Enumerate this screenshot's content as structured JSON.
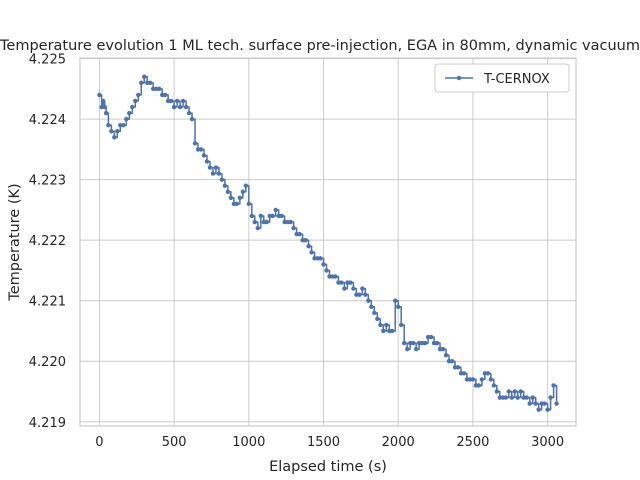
{
  "chart_data": {
    "type": "line",
    "title": "Temperature evolution 1 ML tech. surface pre-injection, EGA in 80mm, dynamic vacuum",
    "xlabel": "Elapsed time (s)",
    "ylabel": "Temperature (K)",
    "xlim": [
      -130,
      3190
    ],
    "ylim": [
      4.21893,
      4.22501
    ],
    "xticks": [
      0,
      500,
      1000,
      1500,
      2000,
      2500,
      3000
    ],
    "xtick_labels": [
      "0",
      "500",
      "1000",
      "1500",
      "2000",
      "2500",
      "3000"
    ],
    "yticks": [
      4.219,
      4.22,
      4.221,
      4.222,
      4.223,
      4.224,
      4.225
    ],
    "ytick_labels": [
      "4.219",
      "4.220",
      "4.221",
      "4.222",
      "4.223",
      "4.224",
      "4.225"
    ],
    "grid": true,
    "legend_position": "top-right",
    "series": [
      {
        "name": "T-CERNOX",
        "color": "#4c72b0",
        "marker": "circle",
        "points": [
          [
            0,
            4.2244
          ],
          [
            15,
            4.2242
          ],
          [
            25,
            4.2243
          ],
          [
            35,
            4.2242
          ],
          [
            45,
            4.2241
          ],
          [
            60,
            4.2239
          ],
          [
            80,
            4.2238
          ],
          [
            100,
            4.2237
          ],
          [
            120,
            4.2238
          ],
          [
            140,
            4.2239
          ],
          [
            160,
            4.2239
          ],
          [
            180,
            4.224
          ],
          [
            200,
            4.2241
          ],
          [
            220,
            4.2242
          ],
          [
            240,
            4.2243
          ],
          [
            260,
            4.2244
          ],
          [
            280,
            4.2246
          ],
          [
            300,
            4.2247
          ],
          [
            320,
            4.2246
          ],
          [
            340,
            4.2246
          ],
          [
            360,
            4.2245
          ],
          [
            380,
            4.2245
          ],
          [
            400,
            4.2245
          ],
          [
            420,
            4.2244
          ],
          [
            440,
            4.2244
          ],
          [
            460,
            4.2243
          ],
          [
            480,
            4.2243
          ],
          [
            500,
            4.2242
          ],
          [
            520,
            4.2243
          ],
          [
            540,
            4.2242
          ],
          [
            560,
            4.2243
          ],
          [
            580,
            4.2242
          ],
          [
            600,
            4.2241
          ],
          [
            620,
            4.224
          ],
          [
            640,
            4.2236
          ],
          [
            660,
            4.2235
          ],
          [
            680,
            4.2235
          ],
          [
            700,
            4.2234
          ],
          [
            720,
            4.2233
          ],
          [
            740,
            4.2232
          ],
          [
            760,
            4.2231
          ],
          [
            780,
            4.2232
          ],
          [
            800,
            4.2231
          ],
          [
            820,
            4.223
          ],
          [
            840,
            4.2229
          ],
          [
            860,
            4.2228
          ],
          [
            880,
            4.2227
          ],
          [
            900,
            4.2226
          ],
          [
            920,
            4.2226
          ],
          [
            940,
            4.2227
          ],
          [
            960,
            4.2228
          ],
          [
            980,
            4.2229
          ],
          [
            1000,
            4.2226
          ],
          [
            1020,
            4.2224
          ],
          [
            1040,
            4.2223
          ],
          [
            1060,
            4.2222
          ],
          [
            1080,
            4.2224
          ],
          [
            1100,
            4.2223
          ],
          [
            1120,
            4.2223
          ],
          [
            1140,
            4.2224
          ],
          [
            1160,
            4.2224
          ],
          [
            1180,
            4.2225
          ],
          [
            1200,
            4.2224
          ],
          [
            1220,
            4.2224
          ],
          [
            1240,
            4.2223
          ],
          [
            1260,
            4.2223
          ],
          [
            1280,
            4.2223
          ],
          [
            1300,
            4.2222
          ],
          [
            1320,
            4.2221
          ],
          [
            1340,
            4.2221
          ],
          [
            1360,
            4.222
          ],
          [
            1380,
            4.222
          ],
          [
            1400,
            4.2219
          ],
          [
            1420,
            4.2218
          ],
          [
            1440,
            4.2217
          ],
          [
            1460,
            4.2217
          ],
          [
            1480,
            4.2217
          ],
          [
            1500,
            4.2216
          ],
          [
            1520,
            4.2215
          ],
          [
            1540,
            4.2214
          ],
          [
            1560,
            4.2214
          ],
          [
            1580,
            4.2214
          ],
          [
            1600,
            4.2213
          ],
          [
            1620,
            4.2213
          ],
          [
            1640,
            4.2212
          ],
          [
            1660,
            4.2213
          ],
          [
            1680,
            4.2213
          ],
          [
            1700,
            4.2212
          ],
          [
            1720,
            4.2211
          ],
          [
            1740,
            4.2211
          ],
          [
            1760,
            4.2212
          ],
          [
            1780,
            4.2211
          ],
          [
            1800,
            4.221
          ],
          [
            1820,
            4.2209
          ],
          [
            1840,
            4.2208
          ],
          [
            1860,
            4.2207
          ],
          [
            1880,
            4.2206
          ],
          [
            1900,
            4.2205
          ],
          [
            1920,
            4.2206
          ],
          [
            1940,
            4.2205
          ],
          [
            1960,
            4.2205
          ],
          [
            1980,
            4.221
          ],
          [
            2000,
            4.2209
          ],
          [
            2020,
            4.2206
          ],
          [
            2040,
            4.2203
          ],
          [
            2060,
            4.2202
          ],
          [
            2080,
            4.2203
          ],
          [
            2100,
            4.2203
          ],
          [
            2120,
            4.2202
          ],
          [
            2140,
            4.2203
          ],
          [
            2160,
            4.2203
          ],
          [
            2180,
            4.2203
          ],
          [
            2200,
            4.2204
          ],
          [
            2220,
            4.2204
          ],
          [
            2240,
            4.2203
          ],
          [
            2260,
            4.2203
          ],
          [
            2280,
            4.2202
          ],
          [
            2300,
            4.2202
          ],
          [
            2320,
            4.2201
          ],
          [
            2340,
            4.22
          ],
          [
            2360,
            4.22
          ],
          [
            2380,
            4.2199
          ],
          [
            2400,
            4.2199
          ],
          [
            2420,
            4.2198
          ],
          [
            2440,
            4.2198
          ],
          [
            2460,
            4.2197
          ],
          [
            2480,
            4.2197
          ],
          [
            2500,
            4.2197
          ],
          [
            2520,
            4.2196
          ],
          [
            2540,
            4.2196
          ],
          [
            2560,
            4.2197
          ],
          [
            2580,
            4.2198
          ],
          [
            2600,
            4.2198
          ],
          [
            2620,
            4.2197
          ],
          [
            2640,
            4.2196
          ],
          [
            2660,
            4.2195
          ],
          [
            2680,
            4.2194
          ],
          [
            2700,
            4.2194
          ],
          [
            2720,
            4.2194
          ],
          [
            2740,
            4.2195
          ],
          [
            2760,
            4.2194
          ],
          [
            2780,
            4.2195
          ],
          [
            2800,
            4.2194
          ],
          [
            2820,
            4.2195
          ],
          [
            2840,
            4.2194
          ],
          [
            2860,
            4.2194
          ],
          [
            2880,
            4.2193
          ],
          [
            2900,
            4.2194
          ],
          [
            2920,
            4.2193
          ],
          [
            2940,
            4.2192
          ],
          [
            2960,
            4.2193
          ],
          [
            2980,
            4.2193
          ],
          [
            3000,
            4.2192
          ],
          [
            3020,
            4.2194
          ],
          [
            3040,
            4.2196
          ],
          [
            3060,
            4.2193
          ]
        ]
      }
    ]
  }
}
